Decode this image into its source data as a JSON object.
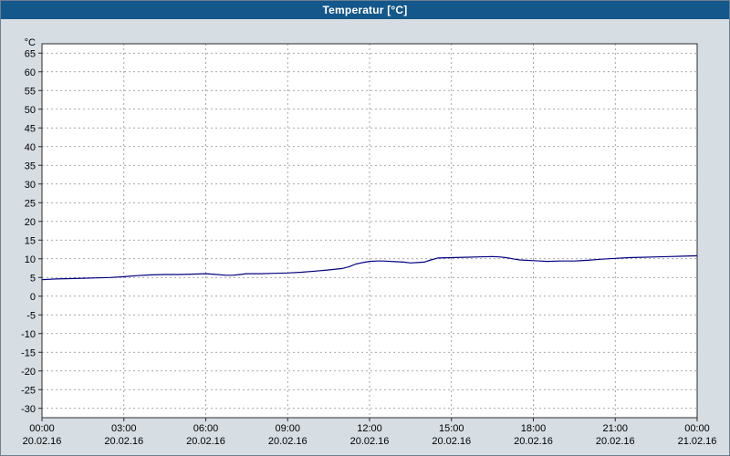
{
  "colors": {
    "window_bg": "#d6dde3",
    "titlebar_bg": "#14578b",
    "titlebar_text": "#ffffff",
    "plot_bg": "#ffffff",
    "grid": "#8a8a8a",
    "axis": "#2b2b2b",
    "line": "#000080"
  },
  "chart_data": {
    "type": "line",
    "title": "Temperatur [°C]",
    "xlabel": "",
    "ylabel": "°C",
    "ylim": [
      -32.5,
      67.5
    ],
    "yticks": [
      65,
      60,
      55,
      50,
      45,
      40,
      35,
      30,
      25,
      20,
      15,
      10,
      5,
      0,
      -5,
      -10,
      -15,
      -20,
      -25,
      -30
    ],
    "xlim": [
      0,
      24
    ],
    "grid": "dashed",
    "legend": "none",
    "xticks": [
      {
        "hour": 0,
        "time": "00:00",
        "date": "20.02.16"
      },
      {
        "hour": 3,
        "time": "03:00",
        "date": "20.02.16"
      },
      {
        "hour": 6,
        "time": "06:00",
        "date": "20.02.16"
      },
      {
        "hour": 9,
        "time": "09:00",
        "date": "20.02.16"
      },
      {
        "hour": 12,
        "time": "12:00",
        "date": "20.02.16"
      },
      {
        "hour": 15,
        "time": "15:00",
        "date": "20.02.16"
      },
      {
        "hour": 18,
        "time": "18:00",
        "date": "20.02.16"
      },
      {
        "hour": 21,
        "time": "21:00",
        "date": "20.02.16"
      },
      {
        "hour": 24,
        "time": "00:00",
        "date": "21.02.16"
      }
    ],
    "series": [
      {
        "name": "Temperatur",
        "color": "#000080",
        "points": [
          [
            0,
            4.4
          ],
          [
            0.5,
            4.6
          ],
          [
            1,
            4.7
          ],
          [
            1.5,
            4.8
          ],
          [
            2,
            4.9
          ],
          [
            2.5,
            5.0
          ],
          [
            3,
            5.2
          ],
          [
            3.5,
            5.5
          ],
          [
            4,
            5.7
          ],
          [
            4.5,
            5.8
          ],
          [
            5,
            5.8
          ],
          [
            5.5,
            5.9
          ],
          [
            6,
            6.0
          ],
          [
            6.25,
            5.9
          ],
          [
            6.75,
            5.6
          ],
          [
            7,
            5.6
          ],
          [
            7.25,
            5.8
          ],
          [
            7.5,
            6.0
          ],
          [
            8,
            6.0
          ],
          [
            8.5,
            6.1
          ],
          [
            9,
            6.2
          ],
          [
            9.5,
            6.4
          ],
          [
            10,
            6.7
          ],
          [
            10.5,
            7.0
          ],
          [
            11,
            7.4
          ],
          [
            11.25,
            7.9
          ],
          [
            11.5,
            8.6
          ],
          [
            11.75,
            9.0
          ],
          [
            12,
            9.3
          ],
          [
            12.25,
            9.4
          ],
          [
            12.5,
            9.4
          ],
          [
            13,
            9.2
          ],
          [
            13.25,
            9.1
          ],
          [
            13.5,
            8.9
          ],
          [
            13.75,
            9.0
          ],
          [
            14,
            9.1
          ],
          [
            14.25,
            9.7
          ],
          [
            14.5,
            10.2
          ],
          [
            15,
            10.3
          ],
          [
            15.5,
            10.4
          ],
          [
            16,
            10.5
          ],
          [
            16.5,
            10.6
          ],
          [
            16.75,
            10.5
          ],
          [
            17,
            10.3
          ],
          [
            17.25,
            10.0
          ],
          [
            17.5,
            9.7
          ],
          [
            18,
            9.5
          ],
          [
            18.25,
            9.4
          ],
          [
            18.5,
            9.3
          ],
          [
            19,
            9.4
          ],
          [
            19.5,
            9.4
          ],
          [
            20,
            9.6
          ],
          [
            20.5,
            9.9
          ],
          [
            21,
            10.1
          ],
          [
            21.5,
            10.3
          ],
          [
            22,
            10.4
          ],
          [
            22.5,
            10.5
          ],
          [
            23,
            10.6
          ],
          [
            23.5,
            10.7
          ],
          [
            24,
            10.8
          ]
        ]
      }
    ]
  }
}
